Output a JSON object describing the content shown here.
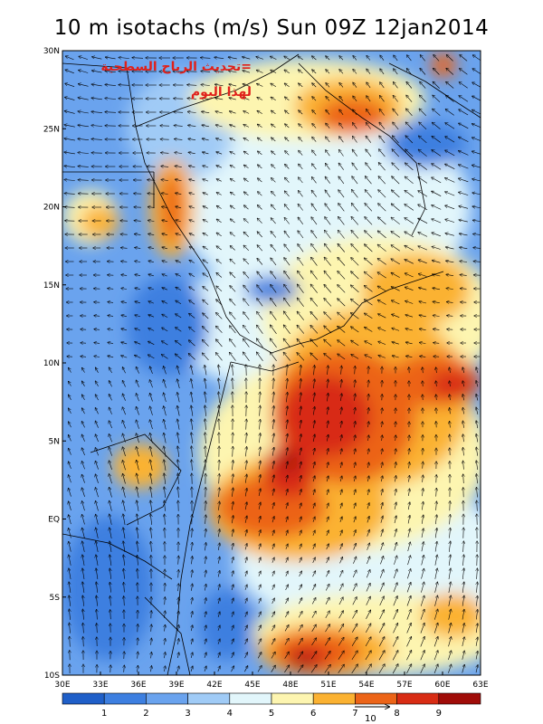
{
  "title": "10 m isotachs (m/s) Sun 09Z 12jan2014",
  "overlay_text_line1": "=تحديث الرياح السطحية",
  "overlay_text_line2": "لهذا اليوم",
  "map": {
    "lon_range": [
      30,
      63
    ],
    "lat_range": [
      -10,
      30
    ],
    "lat_labels": [
      "30N",
      "25N",
      "20N",
      "15N",
      "10N",
      "5N",
      "EQ",
      "5S",
      "10S"
    ],
    "lon_labels": [
      "30E",
      "33E",
      "36E",
      "39E",
      "42E",
      "45E",
      "48E",
      "51E",
      "54E",
      "57E",
      "60E",
      "63E"
    ]
  },
  "legend": {
    "levels": [
      "1",
      "2",
      "3",
      "4",
      "5",
      "6",
      "7",
      "8",
      "9"
    ],
    "colors": [
      "#1f5fc8",
      "#3d7fe0",
      "#6aa3ee",
      "#a0cbf6",
      "#e2f6fb",
      "#fdf5b0",
      "#fbb232",
      "#ec6418",
      "#d82c14",
      "#a00c08"
    ],
    "reference_vector": "10"
  }
}
